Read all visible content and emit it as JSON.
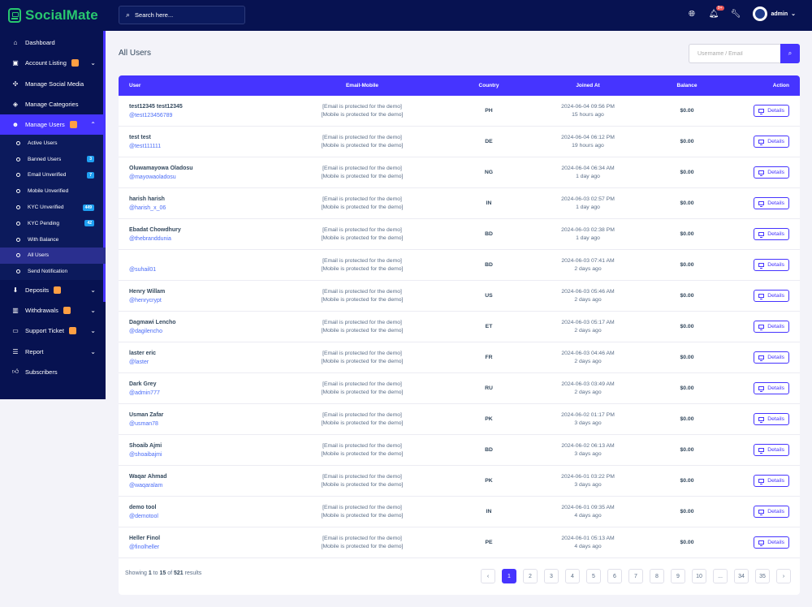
{
  "app": {
    "name": "SocialMate"
  },
  "topbar": {
    "search_placeholder": "Search here...",
    "notification_count": "9+",
    "username": "admin"
  },
  "sidebar": {
    "items": [
      {
        "label": "Dashboard",
        "icon": "dashboard-icon"
      },
      {
        "label": "Account Listing",
        "icon": "store-icon",
        "badge": true,
        "chevron": true
      },
      {
        "label": "Manage Social Media",
        "icon": "share-icon"
      },
      {
        "label": "Manage Categories",
        "icon": "layers-icon"
      },
      {
        "label": "Manage Users",
        "icon": "users-icon",
        "badge": true,
        "chevron": true,
        "active": true
      }
    ],
    "sub_items": [
      {
        "label": "Active Users"
      },
      {
        "label": "Banned Users",
        "count": "3"
      },
      {
        "label": "Email Unverified",
        "count": "7"
      },
      {
        "label": "Mobile Unverified"
      },
      {
        "label": "KYC Unverified",
        "count": "449"
      },
      {
        "label": "KYC Pending",
        "count": "42"
      },
      {
        "label": "With Balance"
      },
      {
        "label": "All Users",
        "active": true
      },
      {
        "label": "Send Notification"
      }
    ],
    "items_after": [
      {
        "label": "Deposits",
        "icon": "deposit-icon",
        "badge": true,
        "chevron": true
      },
      {
        "label": "Withdrawals",
        "icon": "bank-icon",
        "badge": true,
        "chevron": true
      },
      {
        "label": "Support Ticket",
        "icon": "ticket-icon",
        "badge": true,
        "chevron": true
      },
      {
        "label": "Report",
        "icon": "list-icon",
        "chevron": true
      },
      {
        "label": "Subscribers",
        "icon": "thumbs-up-icon"
      }
    ]
  },
  "page": {
    "title": "All Users",
    "search_placeholder": "Username / Email"
  },
  "table": {
    "headers": {
      "user": "User",
      "email_mobile": "Email-Mobile",
      "country": "Country",
      "joined": "Joined At",
      "balance": "Balance",
      "action": "Action"
    },
    "details_label": "Details",
    "email_text": "[Email is protected for the demo]",
    "mobile_text": "[Mobile is protected for the demo]",
    "rows": [
      {
        "name": "test12345 test12345",
        "handle": "@test123456789",
        "country": "PH",
        "joined": "2024-06-04 09:56 PM",
        "ago": "15 hours ago",
        "balance": "$0.00"
      },
      {
        "name": "test test",
        "handle": "@test111111",
        "country": "DE",
        "joined": "2024-06-04 06:12 PM",
        "ago": "19 hours ago",
        "balance": "$0.00"
      },
      {
        "name": "Oluwamayowa Oladosu",
        "handle": "@mayowaoladosu",
        "country": "NG",
        "joined": "2024-06-04 06:34 AM",
        "ago": "1 day ago",
        "balance": "$0.00"
      },
      {
        "name": "harish harish",
        "handle": "@harish_x_06",
        "country": "IN",
        "joined": "2024-06-03 02:57 PM",
        "ago": "1 day ago",
        "balance": "$0.00"
      },
      {
        "name": "Ebadat Chowdhury",
        "handle": "@thebranddunia",
        "country": "BD",
        "joined": "2024-06-03 02:38 PM",
        "ago": "1 day ago",
        "balance": "$0.00"
      },
      {
        "name": "",
        "handle": "@suhail01",
        "country": "BD",
        "joined": "2024-06-03 07:41 AM",
        "ago": "2 days ago",
        "balance": "$0.00"
      },
      {
        "name": "Henry Willam",
        "handle": "@henrycrypt",
        "country": "US",
        "joined": "2024-06-03 05:46 AM",
        "ago": "2 days ago",
        "balance": "$0.00"
      },
      {
        "name": "Dagmawi Lencho",
        "handle": "@dagilencho",
        "country": "ET",
        "joined": "2024-06-03 05:17 AM",
        "ago": "2 days ago",
        "balance": "$0.00"
      },
      {
        "name": "laster eric",
        "handle": "@laster",
        "country": "FR",
        "joined": "2024-06-03 04:46 AM",
        "ago": "2 days ago",
        "balance": "$0.00"
      },
      {
        "name": "Dark Grey",
        "handle": "@admin777",
        "country": "RU",
        "joined": "2024-06-03 03:49 AM",
        "ago": "2 days ago",
        "balance": "$0.00"
      },
      {
        "name": "Usman Zafar",
        "handle": "@usman78",
        "country": "PK",
        "joined": "2024-06-02 01:17 PM",
        "ago": "3 days ago",
        "balance": "$0.00"
      },
      {
        "name": "Shoaib Ajmi",
        "handle": "@shoaibajmi",
        "country": "BD",
        "joined": "2024-06-02 06:13 AM",
        "ago": "3 days ago",
        "balance": "$0.00"
      },
      {
        "name": "Waqar Ahmad",
        "handle": "@waqaralam",
        "country": "PK",
        "joined": "2024-06-01 03:22 PM",
        "ago": "3 days ago",
        "balance": "$0.00"
      },
      {
        "name": "demo tool",
        "handle": "@demotool",
        "country": "IN",
        "joined": "2024-06-01 09:35 AM",
        "ago": "4 days ago",
        "balance": "$0.00"
      },
      {
        "name": "Heller Finol",
        "handle": "@finolheller",
        "country": "PE",
        "joined": "2024-06-01 05:13 AM",
        "ago": "4 days ago",
        "balance": "$0.00"
      }
    ]
  },
  "pagination": {
    "showing_prefix": "Showing",
    "from": "1",
    "to_word": "to",
    "to": "15",
    "of_word": "of",
    "total": "521",
    "results_word": "results",
    "prev": "‹",
    "next": "›",
    "pages": [
      "1",
      "2",
      "3",
      "4",
      "5",
      "6",
      "7",
      "8",
      "9",
      "10",
      "...",
      "34",
      "35"
    ],
    "current": "1"
  },
  "colors": {
    "primary": "#4634ff",
    "sidebar": "#071251",
    "brand": "#28c76f",
    "warning": "#ff9f43",
    "info": "#1e9ff2"
  }
}
